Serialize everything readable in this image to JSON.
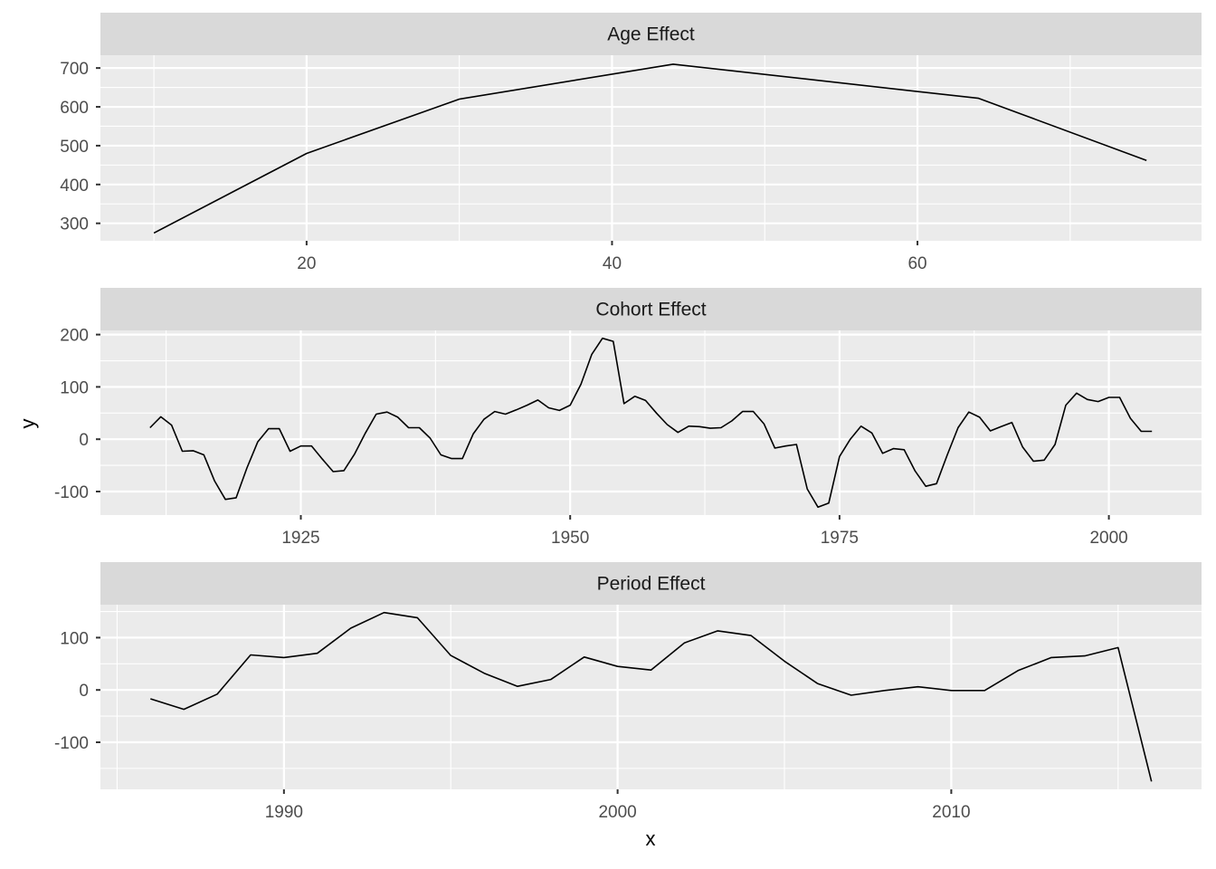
{
  "chart_data": [
    {
      "type": "line",
      "title": "Age Effect",
      "x": [
        10,
        20,
        30,
        44,
        64,
        75
      ],
      "y": [
        275,
        480,
        620,
        710,
        622,
        462
      ],
      "xticks": [
        "20",
        "40",
        "60"
      ],
      "xtick_values": [
        20,
        40,
        60
      ],
      "yticks": [
        "300",
        "400",
        "500",
        "600",
        "700"
      ],
      "ytick_values": [
        300,
        400,
        500,
        600,
        700
      ],
      "xlim": [
        6.5,
        78.6
      ],
      "ylim": [
        255,
        733
      ],
      "grid": true,
      "line_color": "#000000"
    },
    {
      "type": "line",
      "title": "Cohort Effect",
      "x": [
        1911,
        1912,
        1913,
        1914,
        1915,
        1916,
        1917,
        1918,
        1919,
        1920,
        1921,
        1922,
        1923,
        1924,
        1925,
        1926,
        1927,
        1928,
        1929,
        1930,
        1931,
        1932,
        1933,
        1934,
        1935,
        1936,
        1937,
        1938,
        1939,
        1940,
        1941,
        1942,
        1943,
        1944,
        1945,
        1946,
        1947,
        1948,
        1949,
        1950,
        1951,
        1952,
        1953,
        1954,
        1955,
        1956,
        1957,
        1958,
        1959,
        1960,
        1961,
        1962,
        1963,
        1964,
        1965,
        1966,
        1967,
        1968,
        1969,
        1970,
        1971,
        1972,
        1973,
        1974,
        1975,
        1976,
        1977,
        1978,
        1979,
        1980,
        1981,
        1982,
        1983,
        1984,
        1985,
        1986,
        1987,
        1988,
        1989,
        1990,
        1991,
        1992,
        1993,
        1994,
        1995,
        1996,
        1997,
        1998,
        1999,
        2000,
        2001,
        2002,
        2003,
        2004
      ],
      "y": [
        22,
        43,
        27,
        -23,
        -22,
        -30,
        -80,
        -115,
        -112,
        -55,
        -5,
        20,
        20,
        -23,
        -13,
        -13,
        -38,
        -62,
        -60,
        -28,
        12,
        48,
        52,
        42,
        22,
        22,
        2,
        -30,
        -37,
        -37,
        10,
        38,
        53,
        48,
        56,
        65,
        75,
        60,
        55,
        65,
        105,
        162,
        193,
        187,
        68,
        82,
        74,
        50,
        28,
        13,
        25,
        24,
        21,
        22,
        35,
        53,
        53,
        29,
        -17,
        -13,
        -10,
        -95,
        -130,
        -122,
        -33,
        0,
        25,
        12,
        -27,
        -18,
        -20,
        -60,
        -90,
        -85,
        -30,
        22,
        52,
        42,
        16,
        24,
        32,
        -15,
        -42,
        -40,
        -10,
        65,
        88,
        76,
        72,
        80,
        80,
        40,
        15,
        15
      ],
      "xticks": [
        "1925",
        "1950",
        "1975",
        "2000"
      ],
      "xtick_values": [
        1925,
        1950,
        1975,
        2000
      ],
      "yticks": [
        "-100",
        "0",
        "100",
        "200"
      ],
      "ytick_values": [
        -100,
        0,
        100,
        200
      ],
      "xlim": [
        1906.4,
        2008.6
      ],
      "ylim": [
        -145,
        208
      ],
      "grid": true,
      "line_color": "#000000"
    },
    {
      "type": "line",
      "title": "Period Effect",
      "x": [
        1986,
        1987,
        1988,
        1989,
        1990,
        1991,
        1992,
        1993,
        1994,
        1995,
        1996,
        1997,
        1998,
        1999,
        2000,
        2001,
        2002,
        2003,
        2004,
        2005,
        2006,
        2007,
        2008,
        2009,
        2010,
        2011,
        2012,
        2013,
        2014,
        2015,
        2016
      ],
      "y": [
        -17,
        -37,
        -8,
        67,
        62,
        70,
        118,
        148,
        138,
        66,
        32,
        7,
        20,
        63,
        45,
        38,
        90,
        113,
        104,
        55,
        12,
        -10,
        -1,
        6,
        -1,
        -1,
        37,
        62,
        65,
        81,
        -175
      ],
      "xticks": [
        "1990",
        "2000",
        "2010"
      ],
      "xtick_values": [
        1990,
        2000,
        2010
      ],
      "yticks": [
        "-100",
        "0",
        "100"
      ],
      "ytick_values": [
        -100,
        0,
        100
      ],
      "xlim": [
        1984.5,
        2017.5
      ],
      "ylim": [
        -190,
        163
      ],
      "grid": true,
      "line_color": "#000000"
    }
  ],
  "xlabel": "x",
  "ylabel": "y"
}
